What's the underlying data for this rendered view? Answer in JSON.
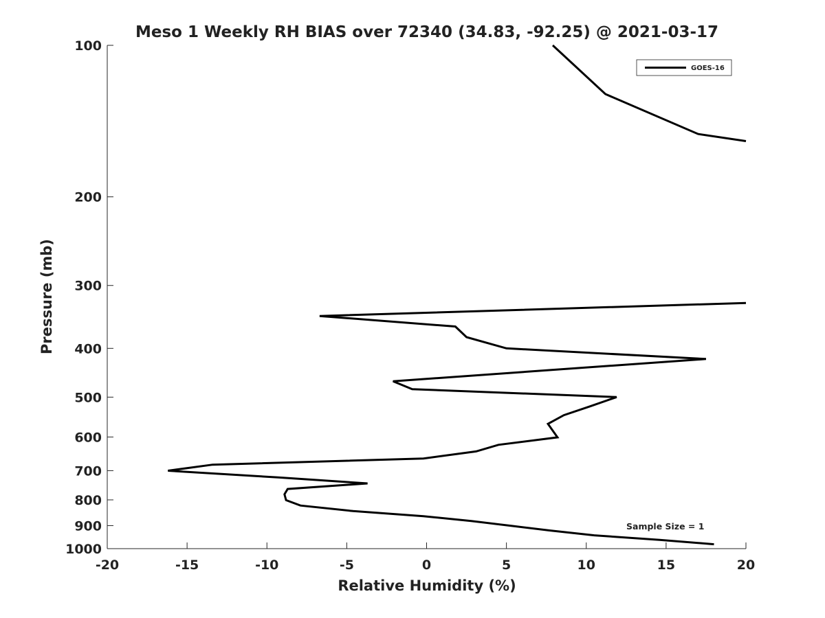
{
  "chart_data": {
    "type": "line",
    "title": "Meso 1 Weekly RH BIAS over 72340 (34.83, -92.25) @ 2021-03-17",
    "xlabel": "Relative Humidity (%)",
    "ylabel": "Pressure (mb)",
    "xlim": [
      -20,
      20
    ],
    "ylim": [
      1000,
      100
    ],
    "y_scale": "log",
    "y_reversed": true,
    "grid": false,
    "legend_position": "top-right",
    "x_ticks": [
      "-20",
      "-15",
      "-10",
      "-5",
      "0",
      "5",
      "10",
      "15",
      "20"
    ],
    "y_ticks": [
      "100",
      "200",
      "300",
      "400",
      "500",
      "600",
      "700",
      "800",
      "900",
      "1000"
    ],
    "annotation": "Sample Size = 1",
    "series": [
      {
        "name": "GOES-16",
        "color": "#000000",
        "points": [
          {
            "rh": 7.9,
            "p": 100
          },
          {
            "rh": 11.2,
            "p": 125
          },
          {
            "rh": 17.0,
            "p": 150
          },
          {
            "rh": 20.0,
            "p": 155
          },
          {
            "rh": null,
            "p": null
          },
          {
            "rh": 20.0,
            "p": 325
          },
          {
            "rh": -6.7,
            "p": 345
          },
          {
            "rh": 1.8,
            "p": 362
          },
          {
            "rh": 2.5,
            "p": 380
          },
          {
            "rh": 5.0,
            "p": 400
          },
          {
            "rh": 17.5,
            "p": 420
          },
          {
            "rh": -2.1,
            "p": 465
          },
          {
            "rh": -0.9,
            "p": 482
          },
          {
            "rh": 11.9,
            "p": 500
          },
          {
            "rh": 10.2,
            "p": 522
          },
          {
            "rh": 8.6,
            "p": 543
          },
          {
            "rh": 7.6,
            "p": 565
          },
          {
            "rh": 8.2,
            "p": 601
          },
          {
            "rh": 4.5,
            "p": 622
          },
          {
            "rh": 3.1,
            "p": 641
          },
          {
            "rh": -0.2,
            "p": 662
          },
          {
            "rh": -13.4,
            "p": 681
          },
          {
            "rh": -16.2,
            "p": 700
          },
          {
            "rh": -9.3,
            "p": 722
          },
          {
            "rh": -3.7,
            "p": 742
          },
          {
            "rh": -8.7,
            "p": 761
          },
          {
            "rh": -8.9,
            "p": 780
          },
          {
            "rh": -8.8,
            "p": 801
          },
          {
            "rh": -7.9,
            "p": 821
          },
          {
            "rh": -4.6,
            "p": 842
          },
          {
            "rh": -0.2,
            "p": 862
          },
          {
            "rh": 2.8,
            "p": 881
          },
          {
            "rh": 5.3,
            "p": 901
          },
          {
            "rh": 7.7,
            "p": 920
          },
          {
            "rh": 10.5,
            "p": 941
          },
          {
            "rh": 14.6,
            "p": 961
          },
          {
            "rh": 18.0,
            "p": 980
          }
        ]
      }
    ]
  }
}
